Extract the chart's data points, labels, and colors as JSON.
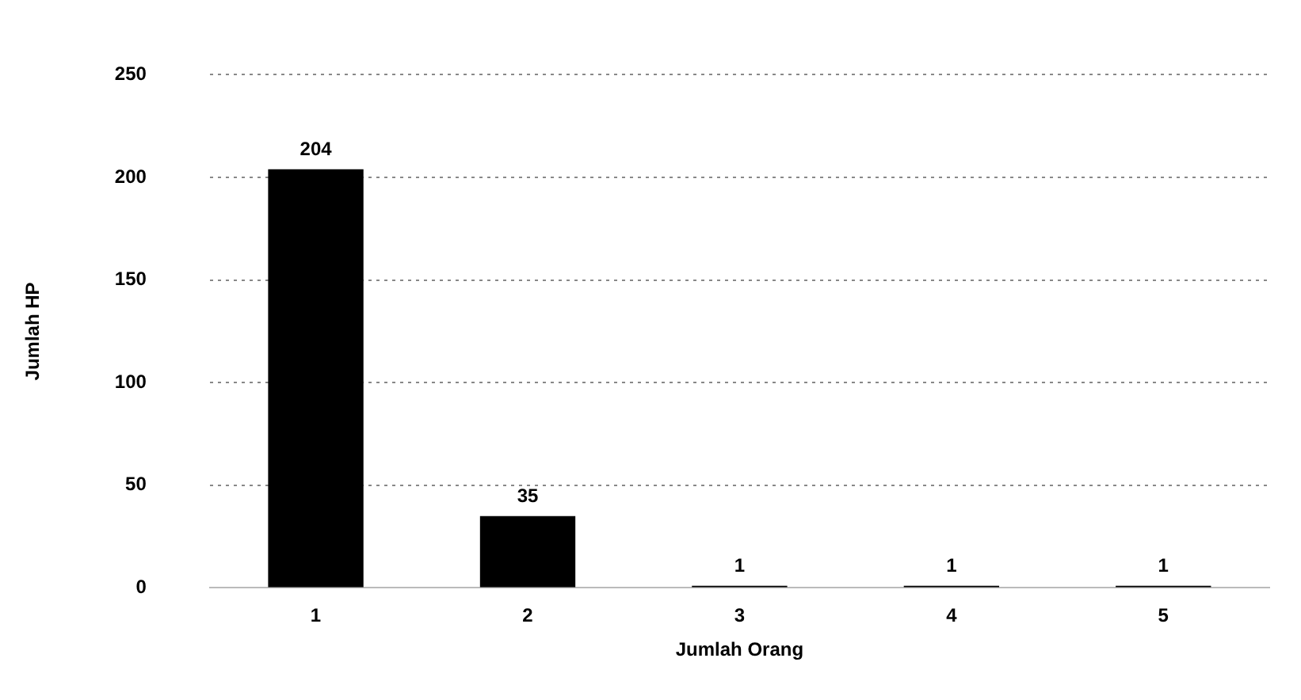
{
  "chart_data": {
    "type": "bar",
    "xlabel": "Jumlah Orang",
    "ylabel": "Jumlah HP",
    "categories": [
      "1",
      "2",
      "3",
      "4",
      "5"
    ],
    "values": [
      204,
      35,
      1,
      1,
      1
    ],
    "color": "#000000",
    "ylim": [
      0,
      250
    ],
    "yticks": [
      0,
      50,
      100,
      150,
      200,
      250
    ],
    "grid": "y",
    "data_labels": true,
    "legend": false
  }
}
